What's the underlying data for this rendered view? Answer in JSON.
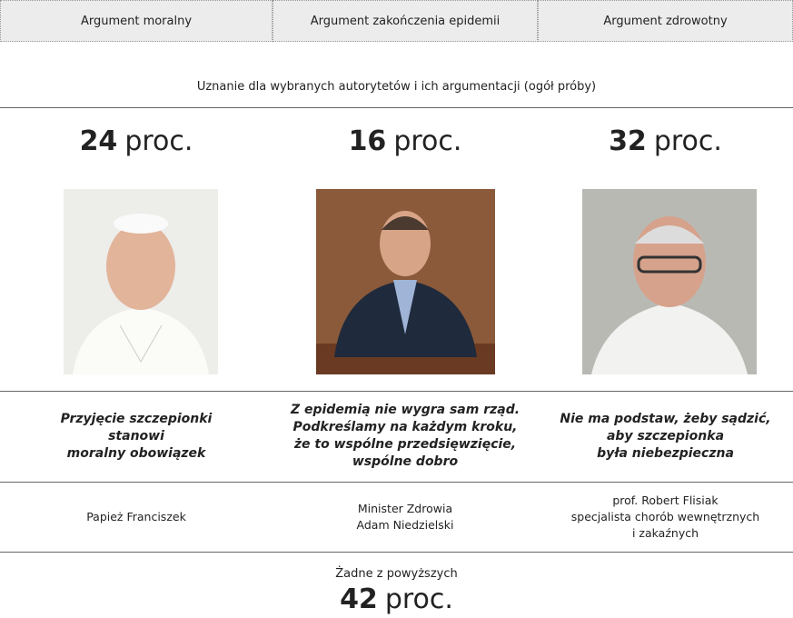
{
  "columns": [
    {
      "header": "Argument moralny",
      "value": 24,
      "unit": "proc.",
      "quote": [
        "Przyjęcie szczepionki",
        "stanowi",
        "moralny obowiązek"
      ],
      "person": [
        "Papież Franciszek"
      ]
    },
    {
      "header": "Argument zakończenia epidemii",
      "value": 16,
      "unit": "proc.",
      "quote": [
        "Z epidemią nie wygra sam rząd.",
        "Podkreślamy na każdym kroku,",
        "że to wspólne przedsięwzięcie,",
        "wspólne dobro"
      ],
      "person": [
        "Minister Zdrowia",
        "Adam Niedzielski"
      ]
    },
    {
      "header": "Argument zdrowotny",
      "value": 32,
      "unit": "proc.",
      "quote": [
        "Nie ma podstaw, żeby sądzić,",
        "aby szczepionka",
        "była niebezpieczna"
      ],
      "person": [
        "prof. Robert Flisiak",
        "specjalista chorób wewnętrznych",
        "i zakaźnych"
      ]
    }
  ],
  "subtitle": "Uznanie dla wybranych autorytetów i ich argumentacji (ogół próby)",
  "none": {
    "label": "Żadne z powyższych",
    "value": 42,
    "unit": "proc."
  }
}
